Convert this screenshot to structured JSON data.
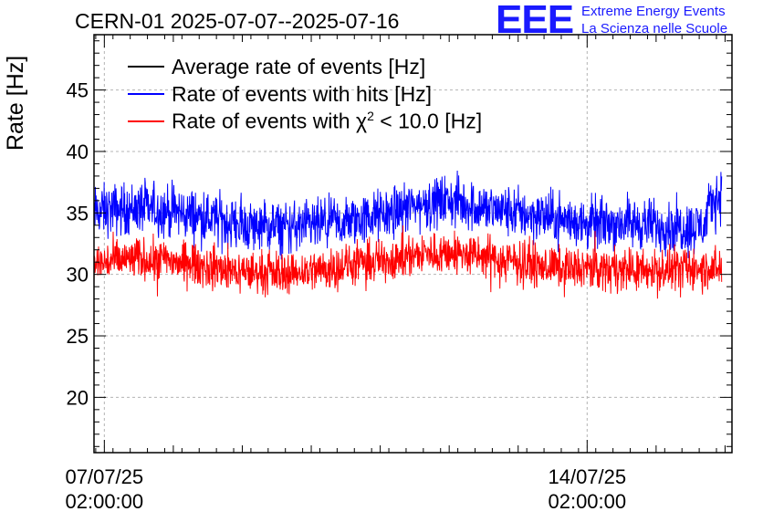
{
  "title": "CERN-01 2025-07-07--2025-07-16",
  "logo": {
    "mark": "EEE",
    "line1": "Extreme Energy Events",
    "line2": "La Scienza nelle Scuole",
    "color": "#1a1aff"
  },
  "chart_data": {
    "type": "line",
    "title": "CERN-01 2025-07-07--2025-07-16",
    "ylabel": "Rate [Hz]",
    "xlabel": "",
    "ylim": [
      15.5,
      49.5
    ],
    "xlim_days": [
      -0.15,
      9.1
    ],
    "yticks": [
      20,
      25,
      30,
      35,
      40,
      45
    ],
    "xticks": [
      {
        "day": 0,
        "label1": "07/07/25",
        "label2": "02:00:00"
      },
      {
        "day": 7,
        "label1": "14/07/25",
        "label2": "02:00:00"
      }
    ],
    "grid": true,
    "legend_position": "top-left",
    "series": [
      {
        "name": "Average rate of events [Hz]",
        "color": "#000000",
        "x_days": [],
        "values": []
      },
      {
        "name": "Rate of events with hits [Hz]",
        "color": "#0000ff",
        "x_days": [
          -0.15,
          0.0,
          0.5,
          1.0,
          1.5,
          2.0,
          2.5,
          3.0,
          3.5,
          4.0,
          4.5,
          5.0,
          5.5,
          6.0,
          6.5,
          7.0,
          7.5,
          8.0,
          8.5,
          8.7,
          8.8,
          8.95
        ],
        "values": [
          35.0,
          35.2,
          35.4,
          35.1,
          34.6,
          34.0,
          33.8,
          33.9,
          34.2,
          34.8,
          35.6,
          36.0,
          35.4,
          35.0,
          34.6,
          34.1,
          34.2,
          34.0,
          33.8,
          34.0,
          35.8,
          36.5
        ]
      },
      {
        "name": "Rate of events with χ² < 10.0 [Hz]",
        "legend_prefix": "Rate of events with ",
        "legend_chi": "χ",
        "legend_sup": "2",
        "legend_suffix": " < 10.0 [Hz]",
        "color": "#ff0000",
        "x_days": [
          -0.15,
          0.0,
          0.5,
          1.0,
          1.5,
          2.0,
          2.5,
          3.0,
          3.5,
          4.0,
          4.5,
          5.0,
          5.5,
          6.0,
          6.5,
          7.0,
          7.5,
          8.0,
          8.5,
          8.7,
          8.8,
          8.95
        ],
        "values": [
          30.8,
          31.0,
          31.3,
          31.1,
          30.6,
          30.2,
          30.1,
          30.3,
          30.7,
          31.1,
          31.6,
          31.8,
          31.4,
          31.0,
          30.6,
          30.4,
          30.5,
          30.3,
          30.5,
          30.4,
          30.6,
          30.5
        ]
      }
    ]
  }
}
